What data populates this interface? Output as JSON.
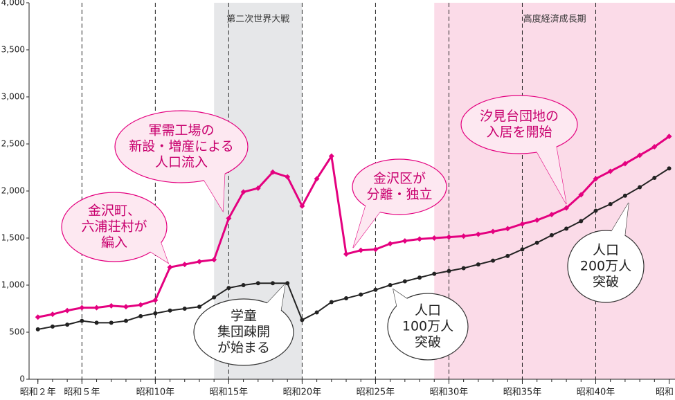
{
  "chart_data": {
    "type": "line",
    "x": [
      2,
      3,
      4,
      5,
      6,
      7,
      8,
      9,
      10,
      11,
      12,
      13,
      14,
      15,
      16,
      17,
      18,
      19,
      20,
      21,
      22,
      23,
      24,
      25,
      26,
      27,
      28,
      29,
      30,
      31,
      32,
      33,
      34,
      35,
      36,
      37,
      38,
      39,
      40,
      41,
      42,
      43,
      44,
      45
    ],
    "series": [
      {
        "color": "#e4007f",
        "values": [
          660,
          690,
          730,
          760,
          760,
          780,
          770,
          790,
          840,
          1190,
          1220,
          1250,
          1270,
          1710,
          1990,
          2030,
          2200,
          2150,
          1840,
          2130,
          2370,
          1330,
          1370,
          1380,
          1440,
          1470,
          1490,
          1500,
          1510,
          1520,
          1540,
          1570,
          1600,
          1650,
          1690,
          1750,
          1820,
          1960,
          2130,
          2210,
          2290,
          2380,
          2470,
          2580
        ]
      },
      {
        "color": "#222222",
        "values": [
          530,
          560,
          580,
          620,
          600,
          600,
          620,
          670,
          700,
          730,
          750,
          770,
          870,
          970,
          1000,
          1020,
          1020,
          1020,
          630,
          710,
          820,
          860,
          900,
          950,
          1000,
          1040,
          1080,
          1120,
          1150,
          1180,
          1220,
          1260,
          1310,
          1380,
          1450,
          1530,
          1600,
          1680,
          1790,
          1860,
          1950,
          2040,
          2140,
          2240
        ]
      }
    ],
    "xlim": [
      1.4,
      45.4
    ],
    "xticks": [
      {
        "value": 2,
        "label": "昭和２年"
      },
      {
        "value": 5,
        "label": "昭和５年"
      },
      {
        "value": 10,
        "label": "昭和10年"
      },
      {
        "value": 15,
        "label": "昭和15年"
      },
      {
        "value": 20,
        "label": "昭和20年"
      },
      {
        "value": 25,
        "label": "昭和25年"
      },
      {
        "value": 30,
        "label": "昭和30年"
      },
      {
        "value": 35,
        "label": "昭和35年"
      },
      {
        "value": 40,
        "label": "昭和40年"
      },
      {
        "value": 45,
        "label": "昭和"
      }
    ],
    "ylim": [
      0,
      4000
    ],
    "yticks": [
      0,
      500,
      {
        "value": 1000,
        "label": "1,000"
      },
      {
        "value": 1500,
        "label": "1,500"
      },
      {
        "value": 2000,
        "label": "2,000"
      },
      {
        "value": 2500,
        "label": "2,500"
      },
      {
        "value": 3000,
        "label": "3,000"
      },
      {
        "value": 3500,
        "label": "3,500"
      },
      {
        "value": 4000,
        "label": "/ 4,000"
      }
    ],
    "vlines": [
      5,
      10,
      15,
      20,
      25,
      30,
      35,
      40
    ],
    "regions": [
      {
        "label": "第二次世界大戦",
        "start": 14,
        "end": 20,
        "color": "#e6e7e9"
      },
      {
        "label": "高度経済成長期",
        "start": 29,
        "end": 45.4,
        "color": "#fbdbe8"
      }
    ],
    "annotations": [
      {
        "lines": [
          "金沢町、",
          "六浦荘村が",
          "編入"
        ],
        "style": "pink"
      },
      {
        "lines": [
          "軍需工場の",
          "新設・増産による",
          "人口流入"
        ],
        "style": "pink"
      },
      {
        "lines": [
          "金沢区が",
          "分離・独立"
        ],
        "style": "pink"
      },
      {
        "lines": [
          "汐見台団地の",
          "入居を開始"
        ],
        "style": "pink"
      },
      {
        "lines": [
          "学童",
          "集団疎開",
          "が始まる"
        ],
        "style": "white"
      },
      {
        "lines": [
          "人口",
          "100万人",
          "突破"
        ],
        "style": "white"
      },
      {
        "lines": [
          "人口",
          "200万人",
          "突破"
        ],
        "style": "white"
      }
    ]
  }
}
